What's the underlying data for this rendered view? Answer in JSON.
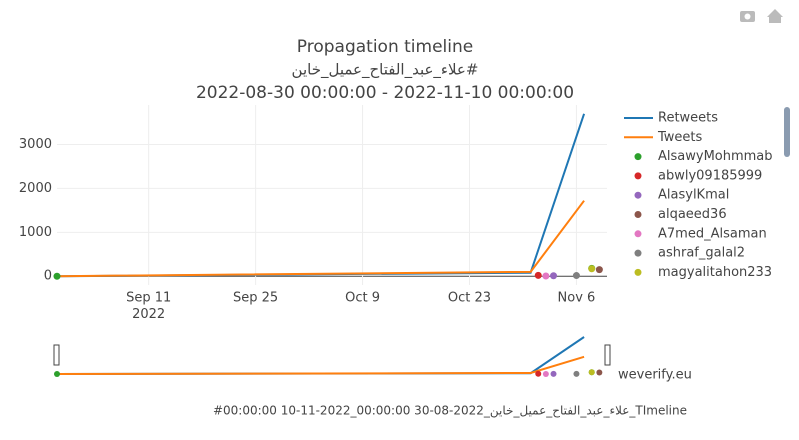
{
  "chart_data": {
    "type": "line",
    "title": "Propagation timeline",
    "subtitle": "علاء_عبد_الفتاح_عميل_خاين#",
    "date_range": "2022-08-30 00:00:00 - 2022-11-10 00:00:00",
    "xlim": [
      "2022-08-30",
      "2022-11-10"
    ],
    "xticks": [
      {
        "value": "2022-09-11",
        "label": "Sep 11 2022"
      },
      {
        "value": "2022-09-25",
        "label": "Sep 25"
      },
      {
        "value": "2022-10-09",
        "label": "Oct 9"
      },
      {
        "value": "2022-10-23",
        "label": "Oct 23"
      },
      {
        "value": "2022-11-06",
        "label": "Nov 6"
      }
    ],
    "ylim": [
      -200,
      3900
    ],
    "yticks": [
      0,
      1000,
      2000,
      3000
    ],
    "grid": true,
    "series": [
      {
        "name": "Retweets",
        "type": "line",
        "color": "#1f77b4",
        "x": [
          "2022-08-30",
          "2022-10-31",
          "2022-11-07"
        ],
        "values": [
          0,
          80,
          3700
        ]
      },
      {
        "name": "Tweets",
        "type": "line",
        "color": "#ff7f0e",
        "x": [
          "2022-08-30",
          "2022-10-31",
          "2022-11-07"
        ],
        "values": [
          0,
          100,
          1720
        ]
      },
      {
        "name": "AlsawyMohmmab",
        "type": "scatter",
        "color": "#2ca02c",
        "x": [
          "2022-08-30",
          "2022-11-08"
        ],
        "values": [
          0,
          180
        ]
      },
      {
        "name": "abwly09185999",
        "type": "scatter",
        "color": "#d62728",
        "x": [
          "2022-11-01"
        ],
        "values": [
          20
        ]
      },
      {
        "name": "AlasylKmal",
        "type": "scatter",
        "color": "#9467bd",
        "x": [
          "2022-11-03"
        ],
        "values": [
          10
        ]
      },
      {
        "name": "alqaeed36",
        "type": "scatter",
        "color": "#8c564b",
        "x": [
          "2022-11-09"
        ],
        "values": [
          150
        ]
      },
      {
        "name": "A7med_Alsaman",
        "type": "scatter",
        "color": "#e377c2",
        "x": [
          "2022-11-02"
        ],
        "values": [
          5
        ]
      },
      {
        "name": "ashraf_galal2",
        "type": "scatter",
        "color": "#7f7f7f",
        "x": [
          "2022-11-06"
        ],
        "values": [
          15
        ]
      },
      {
        "name": "magyalitahon233",
        "type": "scatter",
        "color": "#bcbd22",
        "x": [
          "2022-11-08"
        ],
        "values": [
          170
        ]
      }
    ],
    "annotation": "weverify.eu",
    "footer": "#00:00:00 10-11-2022_00:00:00 30-08-2022_علاء_عبد_الفتاح_عميل_خاين_TImeline"
  }
}
